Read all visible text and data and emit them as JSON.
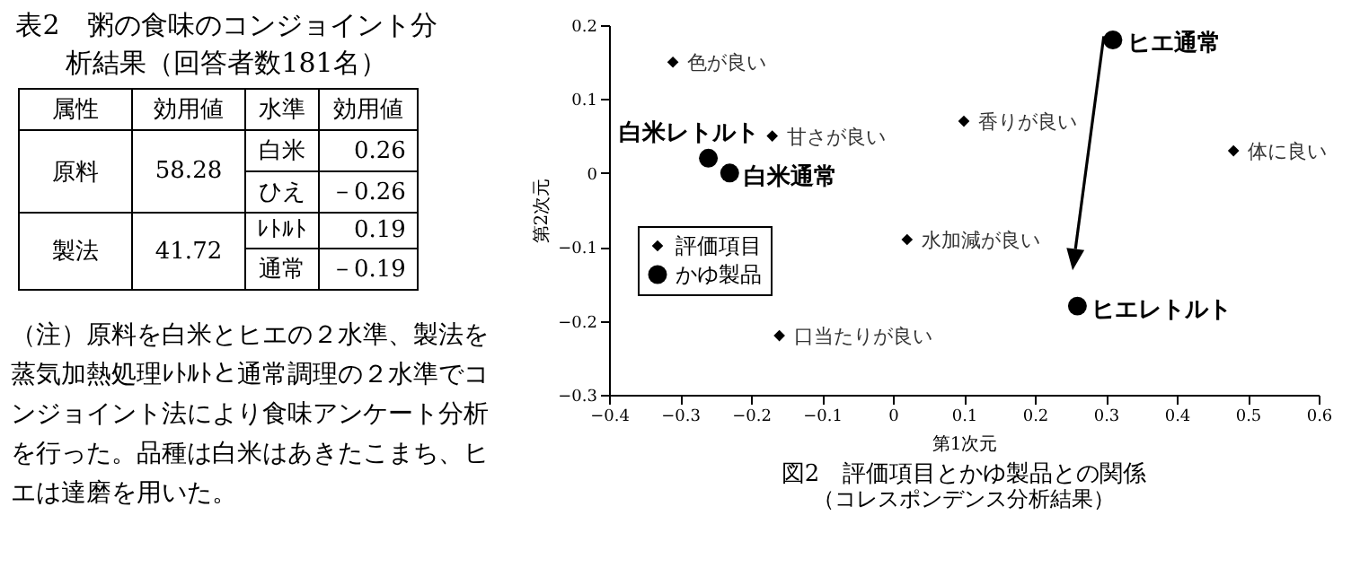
{
  "chart_data": [
    {
      "type": "other",
      "title": "表2　粥の食味のコンジョイント分析結果（回答者数181名）",
      "annotations": [
        "属性",
        "効用値",
        "水準",
        "効用値",
        "原料",
        "58.28",
        "白米",
        "0.26",
        "ひえ",
        "－0.26",
        "製法",
        "41.72",
        "ﾚﾄﾙﾄ",
        "0.19",
        "通常",
        "－0.19",
        "（注）原料を白米とヒエの２水準、製法を蒸気加熱処理ﾚﾄﾙﾄと通常調理の２水準でコンジョイント法により食味アンケート分析を行った。品種は白米はあきたこまち、ヒエは達磨を用いた。"
      ]
    },
    {
      "type": "scatter",
      "title": "図2　評価項目とかゆ製品との関係",
      "subtitle": "（コレスポンデンス分析結果）",
      "xlabel": "第1次元",
      "ylabel": "第2次元",
      "xlim": [
        -0.4,
        0.6
      ],
      "xticks": [
        -0.4,
        -0.3,
        -0.2,
        -0.1,
        0,
        0.1,
        0.2,
        0.3,
        0.4,
        0.5,
        0.6
      ],
      "ylim": [
        -0.3,
        0.2
      ],
      "yticks": [
        -0.3,
        -0.2,
        -0.1,
        0,
        0.1,
        0.2
      ],
      "legend": "bottom left",
      "series": [
        {
          "name": "評価項目",
          "color": "#000000",
          "marker": "diamond",
          "x": [
            -0.31,
            -0.17,
            0.1,
            0.48,
            0.02,
            -0.16
          ],
          "values": [
            0.15,
            0.05,
            0.07,
            0.03,
            -0.09,
            -0.22
          ]
        },
        {
          "name": "かゆ製品",
          "color": "#000000",
          "marker": "circle",
          "x": [
            -0.26,
            -0.23,
            0.31,
            0.26
          ],
          "values": [
            0.02,
            0.0,
            0.18,
            -0.18
          ]
        }
      ],
      "annotations": [
        {
          "text": "色が良い",
          "x": -0.31,
          "y": 0.15
        },
        {
          "text": "甘さが良い",
          "x": -0.17,
          "y": 0.05
        },
        {
          "text": "香りが良い",
          "x": 0.1,
          "y": 0.07
        },
        {
          "text": "体に良い",
          "x": 0.48,
          "y": 0.03
        },
        {
          "text": "水加減が良い",
          "x": 0.02,
          "y": -0.09
        },
        {
          "text": "口当たりが良い",
          "x": -0.16,
          "y": -0.22
        },
        {
          "text": "白米レトルト",
          "x": -0.26,
          "y": 0.02
        },
        {
          "text": "白米通常",
          "x": -0.23,
          "y": 0.0
        },
        {
          "text": "ヒエ通常",
          "x": 0.31,
          "y": 0.18
        },
        {
          "text": "ヒエレトルト",
          "x": 0.26,
          "y": -0.18
        }
      ]
    }
  ]
}
